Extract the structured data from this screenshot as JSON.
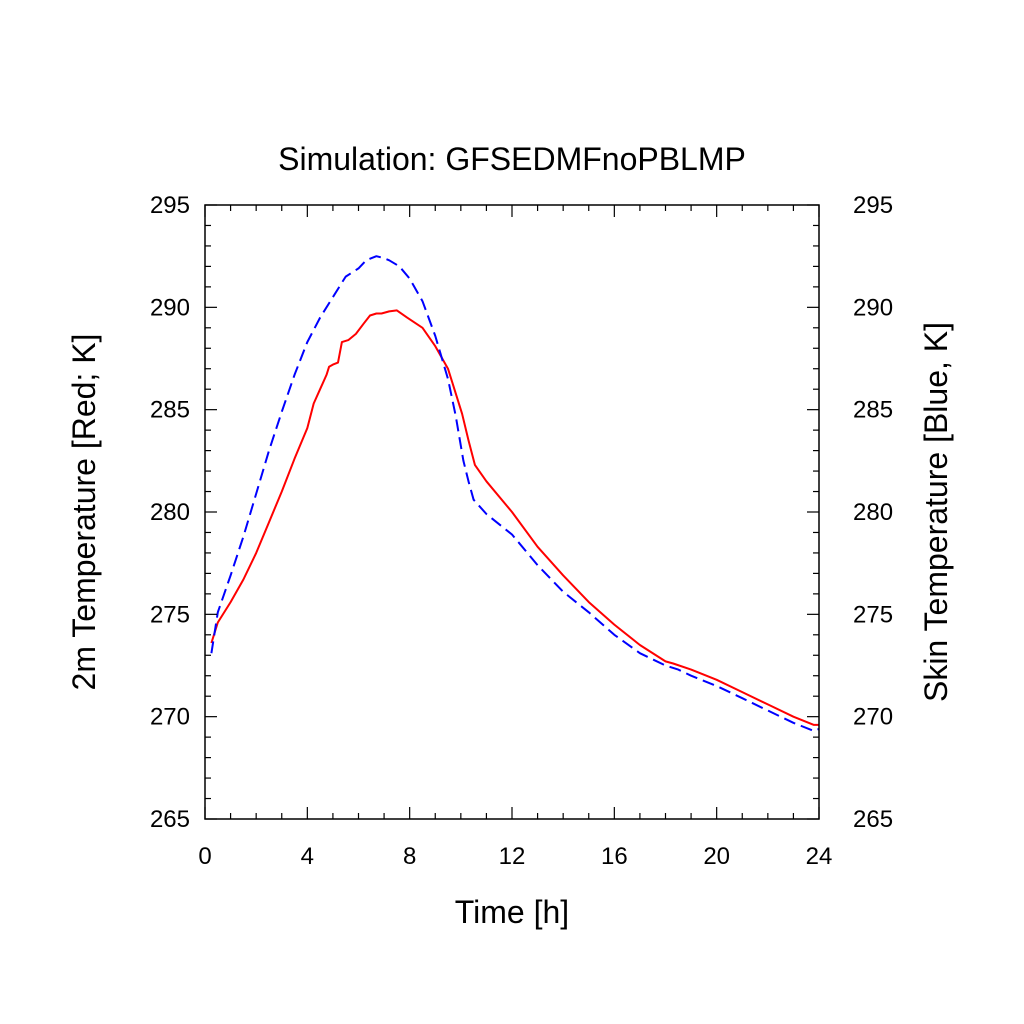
{
  "chart_data": {
    "type": "line",
    "title": "Simulation: GFSEDMFnoPBLMP",
    "xlabel": "Time [h]",
    "ylabel_left": "2m Temperature [Red; K]",
    "ylabel_right": "Skin Temperature [Blue, K]",
    "xlim": [
      0,
      24
    ],
    "ylim": [
      265,
      295
    ],
    "xticks": [
      0,
      4,
      8,
      12,
      16,
      20,
      24
    ],
    "yticks": [
      265,
      270,
      275,
      280,
      285,
      290,
      295
    ],
    "grid": false,
    "series": [
      {
        "color": "#ff0000",
        "style": "solid",
        "axis": "left",
        "x": [
          0.25,
          0.5,
          1.0,
          1.5,
          2.0,
          2.5,
          3.0,
          3.5,
          4.0,
          4.25,
          4.5,
          4.75,
          4.85,
          5.0,
          5.2,
          5.35,
          5.6,
          5.9,
          6.2,
          6.45,
          6.7,
          6.9,
          7.2,
          7.5,
          7.9,
          8.5,
          9.0,
          9.5,
          9.8,
          10.05,
          10.3,
          10.55,
          11.0,
          12.0,
          13.0,
          14.0,
          15.0,
          16.0,
          17.0,
          18.0,
          18.3,
          19.0,
          20.0,
          21.0,
          22.0,
          23.0,
          23.8,
          24.0
        ],
        "values": [
          273.6,
          274.6,
          275.6,
          276.7,
          278.0,
          279.5,
          281.0,
          282.6,
          284.1,
          285.3,
          286.0,
          286.7,
          287.1,
          287.2,
          287.3,
          288.3,
          288.4,
          288.7,
          289.2,
          289.6,
          289.7,
          289.7,
          289.8,
          289.85,
          289.5,
          289.0,
          288.1,
          287.0,
          285.8,
          284.8,
          283.5,
          282.3,
          281.5,
          280.0,
          278.3,
          276.9,
          275.6,
          274.5,
          273.5,
          272.7,
          272.6,
          272.3,
          271.8,
          271.2,
          270.6,
          270.0,
          269.6,
          269.6
        ]
      },
      {
        "color": "#0000ff",
        "style": "dashed",
        "axis": "right",
        "x": [
          0.25,
          0.5,
          1.0,
          1.5,
          2.0,
          2.5,
          3.0,
          3.5,
          4.0,
          4.5,
          5.0,
          5.5,
          6.0,
          6.3,
          6.5,
          6.7,
          7.0,
          7.2,
          7.6,
          8.0,
          8.5,
          9.0,
          9.5,
          9.8,
          10.1,
          10.3,
          10.5,
          11.0,
          12.0,
          13.0,
          14.0,
          15.0,
          16.0,
          17.0,
          18.0,
          18.5,
          19.0,
          20.0,
          21.0,
          22.0,
          23.0,
          23.8,
          24.0
        ],
        "values": [
          273.1,
          275.1,
          276.9,
          278.8,
          280.9,
          283.0,
          284.9,
          286.7,
          288.3,
          289.5,
          290.5,
          291.5,
          291.9,
          292.3,
          292.4,
          292.5,
          292.4,
          292.3,
          292.0,
          291.4,
          290.3,
          288.6,
          286.5,
          284.7,
          282.5,
          281.5,
          280.6,
          279.9,
          278.9,
          277.4,
          276.1,
          275.1,
          274.0,
          273.1,
          272.5,
          272.3,
          272.0,
          271.5,
          270.9,
          270.3,
          269.7,
          269.3,
          269.4
        ]
      }
    ]
  }
}
